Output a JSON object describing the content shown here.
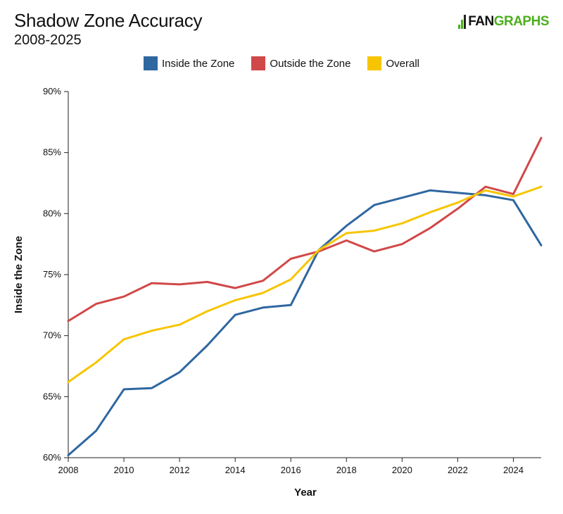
{
  "header": {
    "title": "Shadow Zone Accuracy",
    "subtitle": "2008-2025",
    "logo_fan": "FAN",
    "logo_graphs": "GRAPHS"
  },
  "colors": {
    "inside": "#2f67a0",
    "outside": "#d14848",
    "overall": "#f7c500",
    "logo_green": "#4caf1e"
  },
  "chart_data": {
    "type": "line",
    "title": "Shadow Zone Accuracy",
    "subtitle": "2008-2025",
    "xlabel": "Year",
    "ylabel": "Inside the Zone",
    "x": [
      2008,
      2009,
      2010,
      2011,
      2012,
      2013,
      2014,
      2015,
      2016,
      2017,
      2018,
      2019,
      2020,
      2021,
      2022,
      2023,
      2024,
      2025
    ],
    "xlim": [
      2008,
      2025
    ],
    "ylim": [
      60,
      90
    ],
    "xticks": [
      2008,
      2010,
      2012,
      2014,
      2016,
      2018,
      2020,
      2022,
      2024
    ],
    "yticks": [
      60,
      65,
      70,
      75,
      80,
      85,
      90
    ],
    "ytick_labels": [
      "60%",
      "65%",
      "70%",
      "75%",
      "80%",
      "85%",
      "90%"
    ],
    "legend_position": "top-center",
    "grid": false,
    "series": [
      {
        "name": "Inside the Zone",
        "color": "#2f67a0",
        "values": [
          60.2,
          62.2,
          65.6,
          65.7,
          67.0,
          69.2,
          71.7,
          72.3,
          72.5,
          77.0,
          79.0,
          80.7,
          81.3,
          81.9,
          81.7,
          81.5,
          81.1,
          77.4
        ]
      },
      {
        "name": "Outside the Zone",
        "color": "#d14848",
        "values": [
          71.2,
          72.6,
          73.2,
          74.3,
          74.2,
          74.4,
          73.9,
          74.5,
          76.3,
          76.9,
          77.8,
          76.9,
          77.5,
          78.8,
          80.4,
          82.2,
          81.6,
          86.2
        ]
      },
      {
        "name": "Overall",
        "color": "#f7c500",
        "values": [
          66.2,
          67.8,
          69.7,
          70.4,
          70.9,
          72.0,
          72.9,
          73.5,
          74.6,
          77.0,
          78.4,
          78.6,
          79.2,
          80.1,
          80.9,
          81.9,
          81.4,
          82.2
        ]
      }
    ]
  }
}
